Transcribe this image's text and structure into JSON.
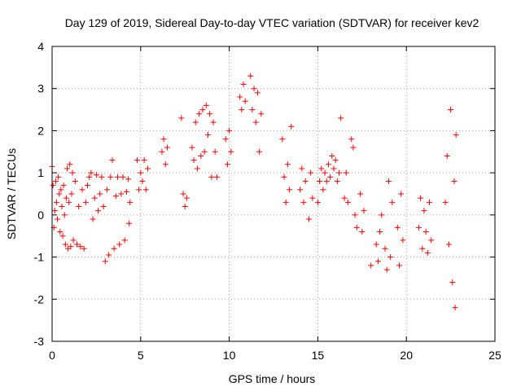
{
  "chart_data": {
    "type": "scatter",
    "title": "Day 129 of 2019, Sidereal Day-to-day VTEC variation (SDTVAR) for receiver kev2",
    "xlabel": "GPS time / hours",
    "ylabel": "SDTVAR / TECUs",
    "xlim": [
      0,
      25
    ],
    "ylim": [
      -3,
      4
    ],
    "xticks": [
      0,
      5,
      10,
      15,
      20,
      25
    ],
    "yticks": [
      -3,
      -2,
      -1,
      0,
      1,
      2,
      3,
      4
    ],
    "xtick_labels": [
      "0",
      "5",
      "10",
      "15",
      "20",
      "25"
    ],
    "ytick_labels": [
      "-3",
      "-2",
      "-1",
      "0",
      "1",
      "2",
      "3",
      "4"
    ],
    "grid": true,
    "marker": "+",
    "color": "#ff0000",
    "series": [
      {
        "name": "SDTVAR",
        "points": [
          [
            0.0,
            1.15
          ],
          [
            0.05,
            0.7
          ],
          [
            0.1,
            -0.3
          ],
          [
            0.15,
            0.1
          ],
          [
            0.2,
            0.8
          ],
          [
            0.25,
            0.3
          ],
          [
            0.3,
            -0.1
          ],
          [
            0.35,
            0.9
          ],
          [
            0.4,
            0.5
          ],
          [
            0.45,
            -0.4
          ],
          [
            0.5,
            0.6
          ],
          [
            0.55,
            0.2
          ],
          [
            0.6,
            -0.5
          ],
          [
            0.65,
            0.7
          ],
          [
            0.7,
            0.0
          ],
          [
            0.75,
            -0.7
          ],
          [
            0.8,
            0.4
          ],
          [
            0.85,
            1.1
          ],
          [
            0.9,
            -0.8
          ],
          [
            0.95,
            0.3
          ],
          [
            1.0,
            1.2
          ],
          [
            1.05,
            -0.75
          ],
          [
            1.1,
            0.5
          ],
          [
            1.15,
            1.0
          ],
          [
            1.2,
            -0.6
          ],
          [
            1.3,
            0.8
          ],
          [
            1.4,
            -0.7
          ],
          [
            1.5,
            0.2
          ],
          [
            1.6,
            -0.75
          ],
          [
            1.7,
            0.6
          ],
          [
            1.8,
            -0.8
          ],
          [
            1.9,
            0.3
          ],
          [
            2.0,
            0.7
          ],
          [
            2.1,
            0.9
          ],
          [
            2.2,
            1.0
          ],
          [
            2.3,
            -0.1
          ],
          [
            2.4,
            0.4
          ],
          [
            2.5,
            0.95
          ],
          [
            2.6,
            0.1
          ],
          [
            2.7,
            0.5
          ],
          [
            2.8,
            0.9
          ],
          [
            2.9,
            0.2
          ],
          [
            3.0,
            -1.1
          ],
          [
            3.1,
            0.6
          ],
          [
            3.2,
            -0.95
          ],
          [
            3.3,
            0.9
          ],
          [
            3.4,
            1.3
          ],
          [
            3.5,
            -0.8
          ],
          [
            3.6,
            0.45
          ],
          [
            3.7,
            0.9
          ],
          [
            3.8,
            -0.7
          ],
          [
            3.9,
            0.5
          ],
          [
            4.0,
            0.9
          ],
          [
            4.1,
            -0.6
          ],
          [
            4.2,
            0.55
          ],
          [
            4.3,
            0.85
          ],
          [
            4.35,
            -0.2
          ],
          [
            4.4,
            0.3
          ],
          [
            4.8,
            1.3
          ],
          [
            4.9,
            0.6
          ],
          [
            5.0,
            1.0
          ],
          [
            5.1,
            0.8
          ],
          [
            5.2,
            1.3
          ],
          [
            5.3,
            0.6
          ],
          [
            5.4,
            1.1
          ],
          [
            6.2,
            1.5
          ],
          [
            6.3,
            1.8
          ],
          [
            6.4,
            1.2
          ],
          [
            6.5,
            1.6
          ],
          [
            7.3,
            2.3
          ],
          [
            7.4,
            0.5
          ],
          [
            7.5,
            0.2
          ],
          [
            7.6,
            0.4
          ],
          [
            7.9,
            1.6
          ],
          [
            8.0,
            1.3
          ],
          [
            8.1,
            2.2
          ],
          [
            8.2,
            1.1
          ],
          [
            8.3,
            2.4
          ],
          [
            8.4,
            1.4
          ],
          [
            8.5,
            2.5
          ],
          [
            8.6,
            1.5
          ],
          [
            8.7,
            2.6
          ],
          [
            8.8,
            1.9
          ],
          [
            8.9,
            2.4
          ],
          [
            9.0,
            0.9
          ],
          [
            9.1,
            2.2
          ],
          [
            9.2,
            1.5
          ],
          [
            9.3,
            0.9
          ],
          [
            9.8,
            1.8
          ],
          [
            9.9,
            1.2
          ],
          [
            10.0,
            2.0
          ],
          [
            10.1,
            1.5
          ],
          [
            10.6,
            2.8
          ],
          [
            10.7,
            2.5
          ],
          [
            10.8,
            3.1
          ],
          [
            10.9,
            2.7
          ],
          [
            11.2,
            3.3
          ],
          [
            11.3,
            2.5
          ],
          [
            11.4,
            3.0
          ],
          [
            11.5,
            2.2
          ],
          [
            11.6,
            2.9
          ],
          [
            11.7,
            1.5
          ],
          [
            11.8,
            2.4
          ],
          [
            13.0,
            1.8
          ],
          [
            13.1,
            0.9
          ],
          [
            13.2,
            0.3
          ],
          [
            13.3,
            1.2
          ],
          [
            13.4,
            0.6
          ],
          [
            13.5,
            2.1
          ],
          [
            14.0,
            0.6
          ],
          [
            14.1,
            1.1
          ],
          [
            14.2,
            0.3
          ],
          [
            14.3,
            0.8
          ],
          [
            14.5,
            -0.1
          ],
          [
            14.6,
            1.0
          ],
          [
            14.7,
            0.4
          ],
          [
            15.0,
            0.3
          ],
          [
            15.1,
            0.8
          ],
          [
            15.2,
            1.1
          ],
          [
            15.3,
            0.6
          ],
          [
            15.4,
            1.0
          ],
          [
            15.5,
            0.8
          ],
          [
            15.6,
            1.2
          ],
          [
            15.7,
            0.9
          ],
          [
            15.8,
            1.4
          ],
          [
            15.9,
            1.1
          ],
          [
            16.0,
            1.3
          ],
          [
            16.1,
            0.8
          ],
          [
            16.2,
            1.0
          ],
          [
            16.3,
            2.3
          ],
          [
            16.5,
            0.4
          ],
          [
            16.6,
            1.0
          ],
          [
            16.7,
            0.3
          ],
          [
            16.9,
            1.8
          ],
          [
            17.0,
            1.6
          ],
          [
            17.1,
            0.0
          ],
          [
            17.2,
            -0.3
          ],
          [
            17.4,
            0.5
          ],
          [
            17.5,
            -0.4
          ],
          [
            17.6,
            0.1
          ],
          [
            18.0,
            -1.2
          ],
          [
            18.3,
            -0.7
          ],
          [
            18.4,
            -1.1
          ],
          [
            18.5,
            -0.4
          ],
          [
            18.6,
            0.0
          ],
          [
            18.8,
            -0.8
          ],
          [
            18.9,
            -1.3
          ],
          [
            19.0,
            0.8
          ],
          [
            19.1,
            -1.0
          ],
          [
            19.2,
            0.3
          ],
          [
            19.5,
            -0.3
          ],
          [
            19.6,
            -1.2
          ],
          [
            19.7,
            0.5
          ],
          [
            19.8,
            -0.6
          ],
          [
            20.7,
            -0.3
          ],
          [
            20.8,
            0.4
          ],
          [
            20.9,
            -0.8
          ],
          [
            21.0,
            0.1
          ],
          [
            21.1,
            -0.4
          ],
          [
            21.2,
            -0.9
          ],
          [
            21.3,
            0.3
          ],
          [
            21.4,
            -0.6
          ],
          [
            22.2,
            0.3
          ],
          [
            22.3,
            1.4
          ],
          [
            22.4,
            -0.7
          ],
          [
            22.5,
            2.5
          ],
          [
            22.6,
            -1.6
          ],
          [
            22.7,
            0.8
          ],
          [
            22.75,
            -2.2
          ],
          [
            22.8,
            1.9
          ]
        ]
      }
    ]
  }
}
